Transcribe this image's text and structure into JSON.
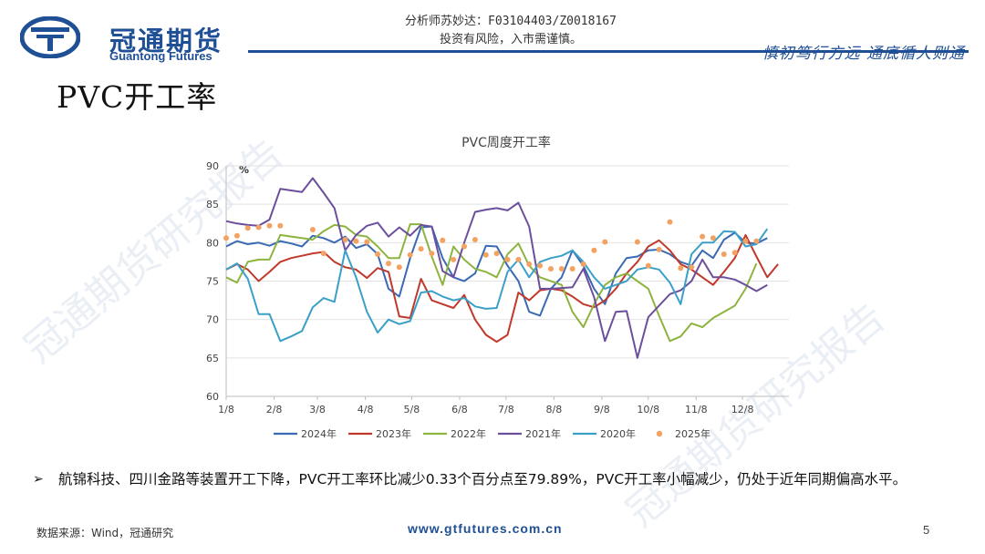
{
  "header": {
    "logo_cn": "冠通期货",
    "logo_en": "Guantong Futures",
    "analyst_line": "分析师苏妙达：F03104403/Z0018167",
    "risk_line": "投资有风险，入市需谨慎。",
    "slogan": "慎初笃行方远 通底循人则通"
  },
  "page_title": "PVC开工率",
  "watermarks": [
    "冠通期货研究报告",
    "冠通期货研究报告"
  ],
  "chart_data": {
    "type": "line",
    "title": "PVC周度开工率",
    "unit_label": "%",
    "ylim": [
      60,
      90
    ],
    "yticks": [
      "60",
      "65",
      "70",
      "75",
      "80",
      "85",
      "90"
    ],
    "xlim": [
      0,
      52
    ],
    "xticks": [
      {
        "label": "1/8",
        "x": 0
      },
      {
        "label": "2/8",
        "x": 4.43
      },
      {
        "label": "3/8",
        "x": 8.43
      },
      {
        "label": "4/8",
        "x": 12.86
      },
      {
        "label": "5/8",
        "x": 17.14
      },
      {
        "label": "6/8",
        "x": 21.57
      },
      {
        "label": "7/8",
        "x": 25.86
      },
      {
        "label": "8/8",
        "x": 30.29
      },
      {
        "label": "9/8",
        "x": 34.71
      },
      {
        "label": "10/8",
        "x": 39
      },
      {
        "label": "11/8",
        "x": 43.43
      },
      {
        "label": "12/8",
        "x": 47.71
      }
    ],
    "series": [
      {
        "name": "2024年",
        "color": "#3a6ab4",
        "style": "line",
        "values": [
          79.5,
          80.2,
          79.8,
          80,
          79.6,
          80.2,
          79.9,
          79.5,
          80.9,
          80.6,
          80,
          80.8,
          79.3,
          79.8,
          78.5,
          74,
          73,
          78,
          82,
          82.1,
          78,
          75.5,
          75,
          76,
          79.6,
          79.5,
          77,
          75,
          71,
          70.5,
          74,
          75.5,
          79,
          77,
          74,
          72,
          76,
          78,
          78.2,
          79,
          79.1,
          78.5,
          77.5,
          77,
          79,
          78,
          80.4,
          81.3,
          80,
          79.9,
          80.6
        ]
      },
      {
        "name": "2023年",
        "color": "#c0392b",
        "style": "line",
        "values": [
          76.5,
          77.2,
          76.5,
          75,
          76.2,
          77.5,
          78,
          78.3,
          78.6,
          78.8,
          77.5,
          76.8,
          76.5,
          75.4,
          76.7,
          76.2,
          70.4,
          70.2,
          75.3,
          72.5,
          72,
          71.5,
          73.2,
          70,
          68,
          67.1,
          68,
          73.5,
          72.5,
          73.8,
          74,
          73.8,
          73,
          72,
          71.6,
          72.5,
          74,
          76,
          77.5,
          79.5,
          80.3,
          79,
          77.2,
          76.5,
          75.5,
          74.5,
          76.2,
          78,
          81,
          78.2,
          75.5,
          77.2
        ]
      },
      {
        "name": "2022年",
        "color": "#8db43e",
        "style": "line",
        "values": [
          75.5,
          74.8,
          77.5,
          77.8,
          77.8,
          81,
          80.8,
          80.6,
          80.4,
          81.5,
          82.3,
          82.1,
          81,
          80.8,
          79.5,
          78,
          78,
          82.4,
          82.4,
          78.2,
          74.5,
          79.5,
          77.8,
          76.6,
          76.2,
          75.5,
          78.5,
          79.9,
          77,
          75.5,
          75,
          74.5,
          71,
          69,
          72,
          74.5,
          75.5,
          76,
          75,
          74,
          70.5,
          67.2,
          67.8,
          69.5,
          69,
          70.2,
          71,
          71.8,
          74,
          77.3
        ]
      },
      {
        "name": "2021年",
        "color": "#6c4f9c",
        "style": "line",
        "values": [
          82.8,
          82.5,
          82.3,
          82.2,
          83,
          87,
          86.8,
          86.6,
          88.4,
          86.5,
          84.5,
          79,
          81,
          82.2,
          82.6,
          80.8,
          82,
          80.9,
          82.3,
          82.1,
          76.3,
          75.5,
          80,
          84,
          84.3,
          84.5,
          84.2,
          85.2,
          82.1,
          74,
          74,
          74.1,
          74.2,
          76.6,
          72.9,
          67.2,
          71,
          71.1,
          65,
          70.3,
          71.8,
          73.3,
          73.8,
          75,
          77.8,
          75.5,
          75.5,
          75.2,
          74.5,
          73.7,
          74.5
        ]
      },
      {
        "name": "2020年",
        "color": "#3aa0c8",
        "style": "line",
        "values": [
          76.5,
          77.3,
          75.3,
          70.7,
          70.7,
          67.2,
          67.8,
          68.5,
          71.6,
          72.8,
          72.3,
          79,
          75.5,
          71,
          68.3,
          70,
          69.4,
          69.8,
          73.5,
          73.7,
          73,
          72.5,
          72.8,
          71.7,
          71.4,
          71.5,
          76.2,
          77.8,
          75.5,
          77.5,
          78,
          78.3,
          79,
          77.5,
          75.5,
          74,
          74.5,
          75,
          76.5,
          76.8,
          76.5,
          74.8,
          72,
          78.5,
          80,
          80,
          81.5,
          81.4,
          79.5,
          79.8,
          81.8
        ]
      },
      {
        "name": "2025年",
        "color": "#f4a261",
        "style": "dot",
        "values": [
          80.6,
          80.9,
          81.9,
          82,
          82.2,
          82.2,
          null,
          null,
          81.7,
          78.6,
          null,
          80.4,
          80.2,
          80.1,
          78.5,
          77.3,
          76.8,
          78.4,
          79.2,
          78.6,
          80.3,
          77.8,
          79.5,
          80.4,
          78.4,
          78.6,
          77.8,
          77.8,
          77.2,
          77,
          76.6,
          76.6,
          76.6,
          77.2,
          79,
          80.1,
          null,
          null,
          80.1,
          77,
          79.1,
          82.7,
          76.7,
          76.8,
          80.8,
          80.6,
          78.5,
          78.7,
          80.2,
          80.2
        ]
      }
    ]
  },
  "bullet_text": "航锦科技、四川金路等装置开工下降，PVC开工率环比减少0.33个百分点至79.89%，PVC开工率小幅减少，仍处于近年同期偏高水平。",
  "footer": {
    "source": "数据来源：Wind，冠通研究",
    "website": "www.gtfutures.com.cn",
    "page_number": "5"
  }
}
